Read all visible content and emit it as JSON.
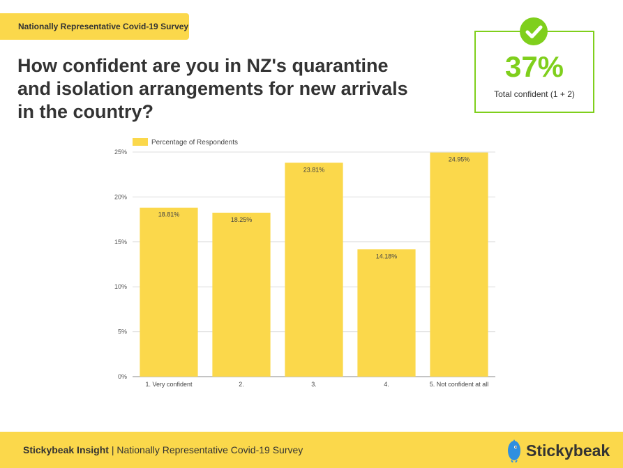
{
  "header": {
    "tag": "Nationally Representative Covid-19 Survey",
    "title": "How confident are you in NZ's quarantine and isolation arrangements for new arrivals in the country?"
  },
  "stat": {
    "value": "37%",
    "label": "Total confident (1 + 2)",
    "icon": "check-icon",
    "color": "#7fcf1c"
  },
  "chart_data": {
    "type": "bar",
    "categories": [
      "1. Very confident",
      "2.",
      "3.",
      "4.",
      "5. Not confident at all"
    ],
    "series": [
      {
        "name": "Percentage of Respondents",
        "values": [
          18.81,
          18.25,
          23.81,
          14.18,
          24.95
        ],
        "labels": [
          "18.81%",
          "18.25%",
          "23.81%",
          "14.18%",
          "24.95%"
        ]
      }
    ],
    "yticks": [
      "0%",
      "5%",
      "10%",
      "15%",
      "20%",
      "25%"
    ],
    "ylim": [
      0,
      25
    ],
    "grid": true,
    "legend": "top-left",
    "bar_color": "#fbd84b"
  },
  "footer": {
    "brand_label": "Stickybeak Insight",
    "separator": " | ",
    "subtitle": "Nationally Representative Covid-19 Survey",
    "logo_text": "Stickybeak"
  }
}
